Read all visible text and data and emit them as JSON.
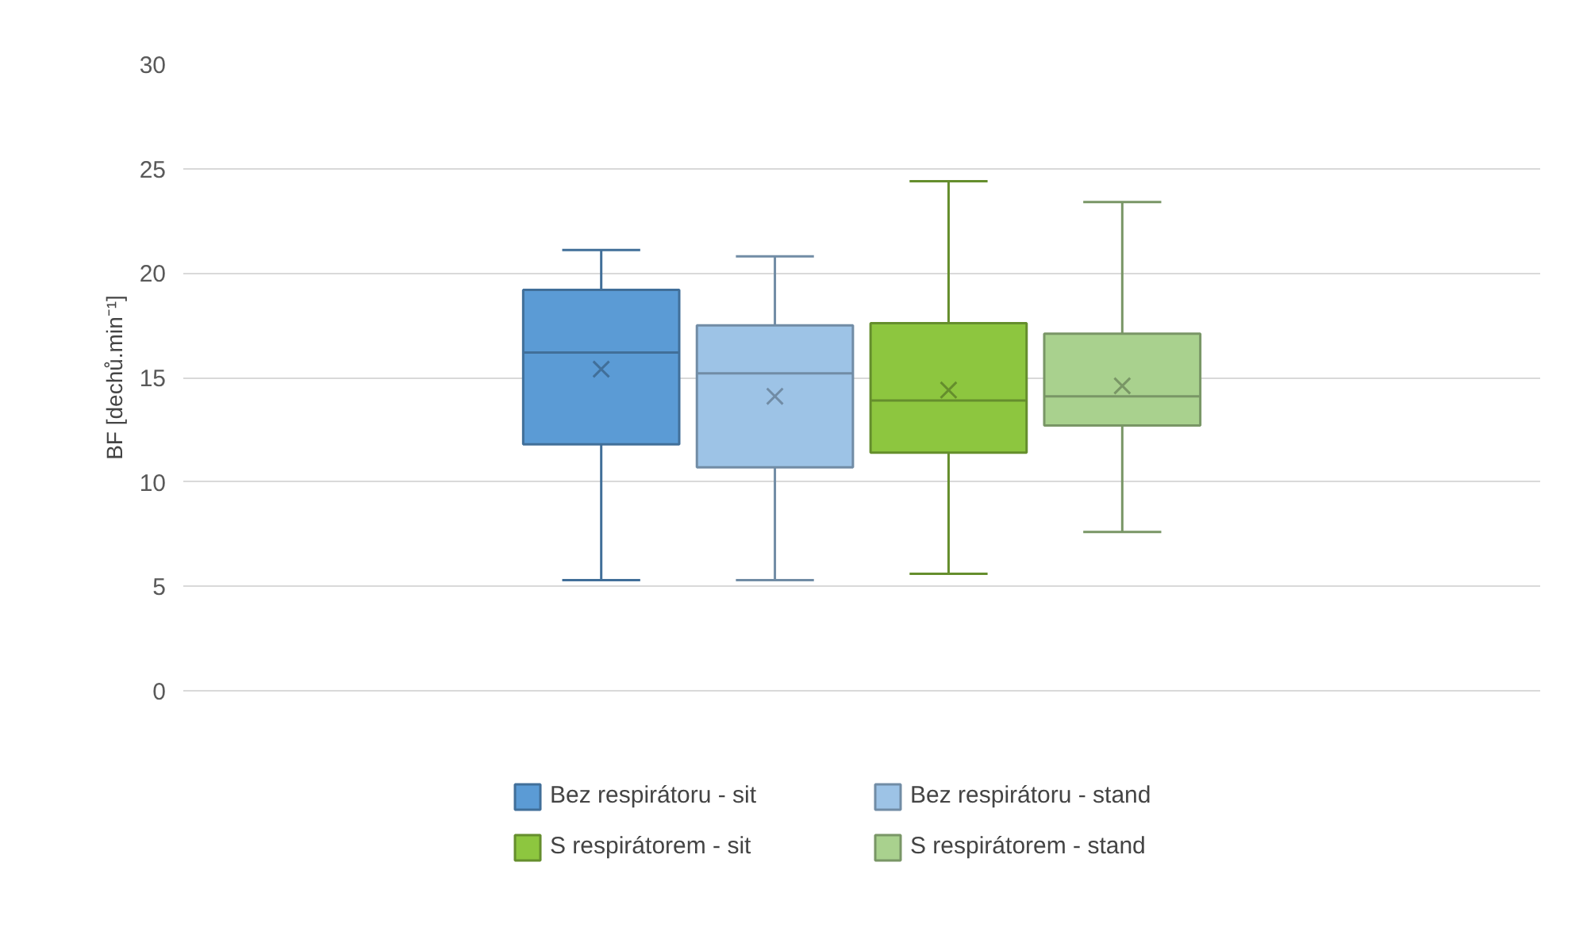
{
  "chart_data": {
    "type": "box",
    "ylabel": "BF [dechů.min⁻¹]",
    "categories": [
      null
    ],
    "ylim": [
      0,
      30
    ],
    "yticks": [
      0,
      5,
      10,
      15,
      20,
      25,
      30
    ],
    "grid": "y",
    "legend": "bottom",
    "series": [
      {
        "name": "Bez respirátoru - sit",
        "color": "#5b9bd5",
        "boxes": [
          {
            "low": 5.3,
            "q1": 11.8,
            "median": 16.2,
            "q3": 19.2,
            "high": 21.1,
            "mean": 15.4
          }
        ]
      },
      {
        "name": "Bez respirátoru - stand",
        "color": "#9dc3e6",
        "boxes": [
          {
            "low": 5.3,
            "q1": 10.7,
            "median": 15.2,
            "q3": 17.5,
            "high": 20.8,
            "mean": 14.1
          }
        ]
      },
      {
        "name": "S respirátorem - sit",
        "color": "#8dc63f",
        "boxes": [
          {
            "low": 5.6,
            "q1": 11.4,
            "median": 13.9,
            "q3": 17.6,
            "high": 24.4,
            "mean": 14.4
          }
        ]
      },
      {
        "name": "S respirátorem - stand",
        "color": "#a9d18e",
        "boxes": [
          {
            "low": 7.6,
            "q1": 12.7,
            "median": 14.1,
            "q3": 17.1,
            "high": 23.4,
            "mean": 14.6
          }
        ]
      }
    ]
  }
}
